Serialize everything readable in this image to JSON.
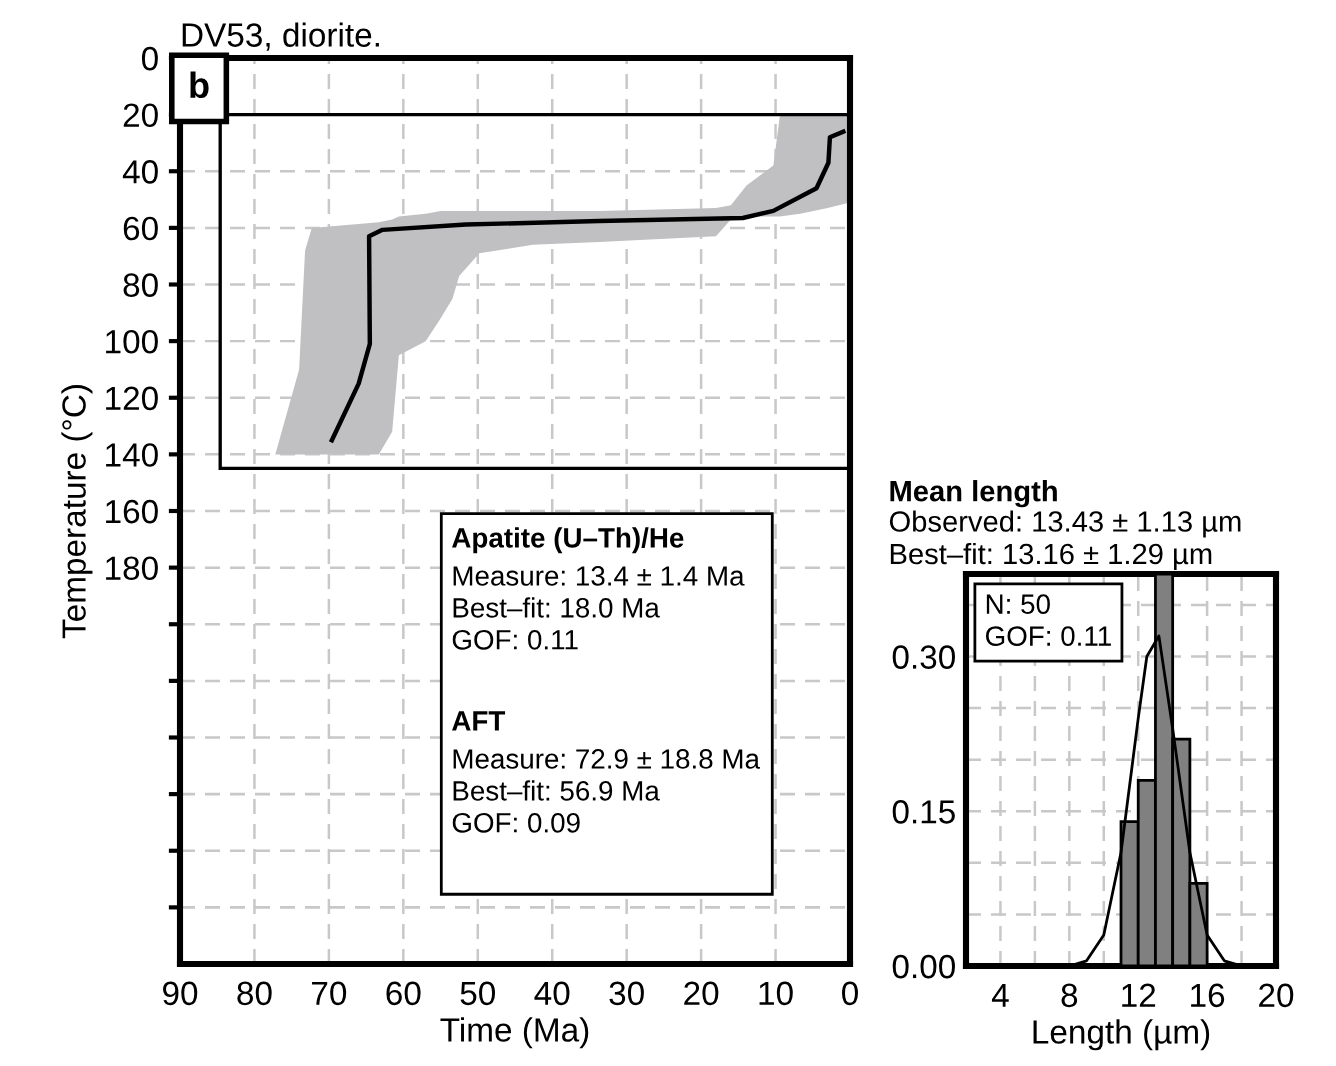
{
  "chart_data": [
    {
      "type": "line",
      "title": "DV53, diorite.",
      "xlabel": "Time (Ma)",
      "ylabel": "Temperature (°C)",
      "xlim": [
        90,
        0
      ],
      "ylim": [
        320,
        0
      ],
      "xticks": [
        90,
        80,
        70,
        60,
        50,
        40,
        30,
        20,
        10,
        0
      ],
      "yticks": [
        0,
        20,
        40,
        60,
        80,
        100,
        120,
        140,
        160,
        180,
        {
          "value": 200,
          "label": null
        },
        {
          "value": 220,
          "label": null
        },
        {
          "value": 240,
          "label": null
        },
        {
          "value": 260,
          "label": null
        },
        {
          "value": 280,
          "label": null
        },
        {
          "value": 300,
          "label": null
        }
      ],
      "grid": true,
      "legend": false,
      "marker": "none",
      "line_style": "solid",
      "series": [
        {
          "type": "area",
          "color": "#c0c0c2",
          "x": [
            0,
            3,
            6.7,
            9.4,
            10.3,
            13.9,
            16,
            18,
            33.7,
            42.6,
            49.8,
            52.5,
            53.4,
            55,
            57,
            60.6,
            61.5,
            63.3,
            72.3,
            73.2,
            74,
            77.2
          ],
          "values": [
            null,
            null,
            null,
            null,
            null,
            null,
            null,
            null,
            null,
            null,
            null,
            null,
            null,
            null,
            null,
            null,
            null,
            null,
            null,
            null,
            null,
            null
          ],
          "lower": [
            20,
            20,
            20,
            20,
            38,
            45,
            52,
            53,
            54,
            54,
            54,
            54,
            54,
            54,
            55,
            56,
            57,
            58,
            60,
            68,
            110,
            140
          ],
          "upper": [
            51,
            53,
            55,
            56,
            56,
            56,
            57,
            63,
            65,
            66,
            69,
            77,
            85,
            92,
            100,
            105,
            132,
            140,
            140,
            140,
            140,
            140
          ]
        },
        {
          "type": "line",
          "color": "#000000",
          "x": [
            0.9,
            2.7,
            2.9,
            4.5,
            10.3,
            14.4,
            33.7,
            51.6,
            62.8,
            64.6,
            64.5,
            66,
            69.6
          ],
          "values": [
            26,
            28,
            37,
            46,
            54,
            56.5,
            57.6,
            58.8,
            60.7,
            63,
            101,
            115,
            135
          ]
        }
      ],
      "annotations": [
        "b",
        "Apatite (U–Th)/He",
        "Measure: 13.4 ± 1.4 Ma\nBest–fit: 18.0 Ma\nGOF: 0.11",
        "AFT",
        "Measure: 72.9 ± 18.8 Ma\nBest–fit: 56.9 Ma\nGOF: 0.09"
      ]
    },
    {
      "type": "histogram",
      "title": "Mean length",
      "subtitle": "Observed: 13.43 ± 1.13 µm\nBest–fit: 13.16 ± 1.29 µm",
      "xlabel": "Length (µm)",
      "bins": [
        11,
        12,
        13,
        14,
        15,
        16
      ],
      "values": [
        0.14,
        0.18,
        0.38,
        0.22,
        0.08
      ],
      "color": "#808080",
      "xlim": [
        2,
        20
      ],
      "ylim": [
        0,
        0.38
      ],
      "xticks": [
        4,
        8,
        12,
        16,
        20,
        {
          "value": 6,
          "label": null
        },
        {
          "value": 10,
          "label": null
        },
        {
          "value": 18,
          "label": null
        }
      ],
      "yticks": [
        {
          "value": 0,
          "label": "0.00"
        },
        {
          "value": 0.15,
          "label": "0.15"
        },
        {
          "value": 0.3,
          "label": "0.30"
        },
        {
          "value": 0.05,
          "label": null
        },
        {
          "value": 0.1,
          "label": null
        },
        {
          "value": 0.2,
          "label": null
        },
        {
          "value": 0.25,
          "label": null
        },
        {
          "value": 0.35,
          "label": null
        }
      ],
      "grid": true,
      "legend": false,
      "series": [
        {
          "type": "line",
          "color": "#000000",
          "x": [
            8,
            9,
            10,
            11,
            12,
            12.5,
            13.2,
            14,
            15,
            16,
            17,
            18
          ],
          "values": [
            0,
            0.005,
            0.03,
            0.11,
            0.24,
            0.3,
            0.32,
            0.23,
            0.11,
            0.03,
            0.005,
            0
          ]
        }
      ],
      "annotations": [
        "N: 50\nGOF: 0.11"
      ]
    }
  ]
}
